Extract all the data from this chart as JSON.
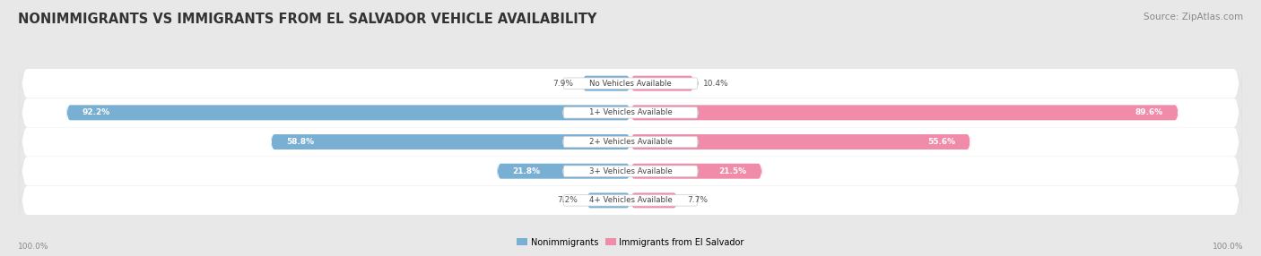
{
  "title": "NONIMMIGRANTS VS IMMIGRANTS FROM EL SALVADOR VEHICLE AVAILABILITY",
  "source": "Source: ZipAtlas.com",
  "categories": [
    "No Vehicles Available",
    "1+ Vehicles Available",
    "2+ Vehicles Available",
    "3+ Vehicles Available",
    "4+ Vehicles Available"
  ],
  "nonimmigrant_values": [
    7.9,
    92.2,
    58.8,
    21.8,
    7.2
  ],
  "immigrant_values": [
    10.4,
    89.6,
    55.6,
    21.5,
    7.7
  ],
  "nonimmigrant_color": "#7aafd4",
  "immigrant_color": "#f08baa",
  "nonimmigrant_label": "Nonimmigrants",
  "immigrant_label": "Immigrants from El Salvador",
  "background_color": "#e8e8e8",
  "row_bg_color": "#ebebeb",
  "axis_label_left": "100.0%",
  "axis_label_right": "100.0%",
  "max_val": 100.0,
  "title_fontsize": 10.5,
  "source_fontsize": 7.5,
  "value_label_inside_threshold": 15.0
}
